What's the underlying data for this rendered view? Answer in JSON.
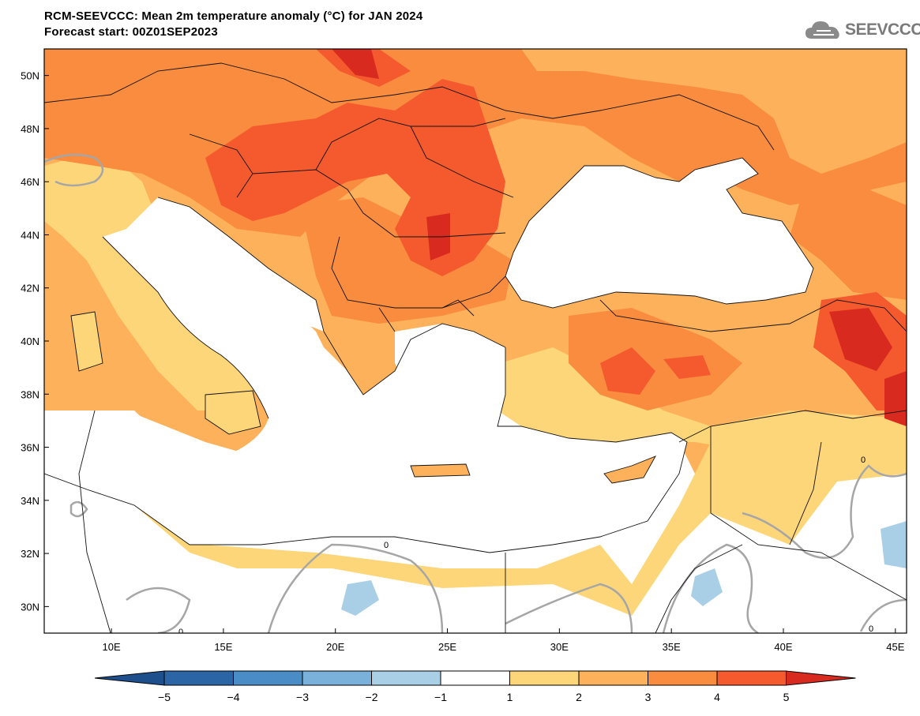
{
  "header": {
    "title": "RCM-SEEVCCC: Mean 2m temperature anomaly (°C) for JAN 2024",
    "subtitle": "Forecast start: 00Z01SEP2023"
  },
  "logo": {
    "text": "SEEVCCC",
    "icon": "cloud-icon"
  },
  "map": {
    "lon_range": [
      7,
      45.5
    ],
    "lat_range": [
      29,
      51
    ],
    "lat_ticks": [
      {
        "value": 50,
        "label": "50N"
      },
      {
        "value": 48,
        "label": "48N"
      },
      {
        "value": 46,
        "label": "46N"
      },
      {
        "value": 44,
        "label": "44N"
      },
      {
        "value": 42,
        "label": "42N"
      },
      {
        "value": 40,
        "label": "40N"
      },
      {
        "value": 38,
        "label": "38N"
      },
      {
        "value": 36,
        "label": "36N"
      },
      {
        "value": 34,
        "label": "34N"
      },
      {
        "value": 32,
        "label": "32N"
      },
      {
        "value": 30,
        "label": "30N"
      }
    ],
    "lon_ticks": [
      {
        "value": 10,
        "label": "10E"
      },
      {
        "value": 15,
        "label": "15E"
      },
      {
        "value": 20,
        "label": "20E"
      },
      {
        "value": 25,
        "label": "25E"
      },
      {
        "value": 30,
        "label": "30E"
      },
      {
        "value": 35,
        "label": "35E"
      },
      {
        "value": 40,
        "label": "40E"
      },
      {
        "value": 45,
        "label": "45E"
      }
    ],
    "contour_label": "0"
  },
  "colorbar": {
    "labels": [
      "−5",
      "−4",
      "−3",
      "−2",
      "−1",
      "1",
      "2",
      "3",
      "4",
      "5"
    ],
    "colors": [
      "#2b65a5",
      "#4a8cc6",
      "#79b1da",
      "#a9cfe7",
      "#ffffff",
      "#fdd67a",
      "#fdb15a",
      "#f98c3f",
      "#f45a2d"
    ],
    "under_color": "#1d4f8c",
    "over_color": "#d92a20"
  },
  "palette": {
    "anom_1_2": "#fdd67a",
    "anom_2_3": "#fdb15a",
    "anom_3_4": "#f98c3f",
    "anom_4_5": "#f45a2d",
    "anom_gt5": "#d92a20",
    "anom_neg": "#a9cfe7",
    "contour": "#a6a6a6"
  }
}
